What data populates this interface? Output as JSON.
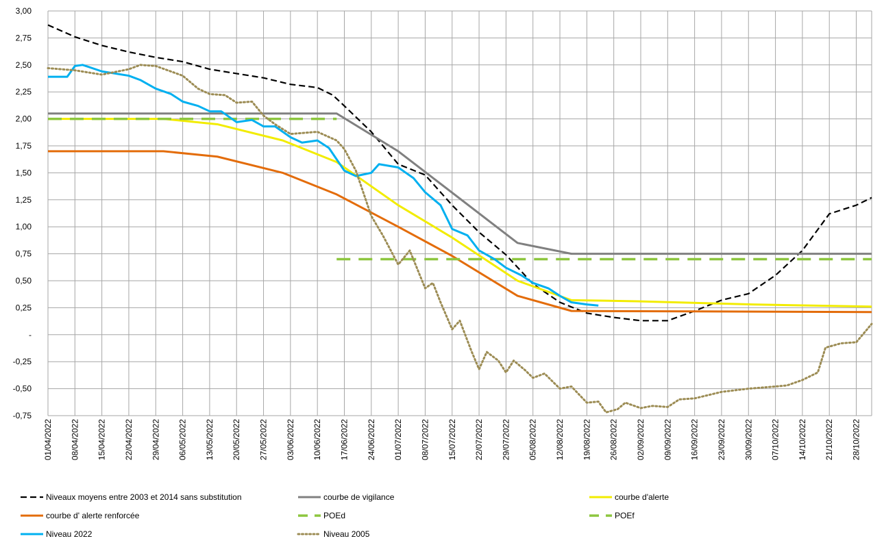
{
  "chart_data": {
    "type": "line",
    "title": "",
    "xlabel": "",
    "ylabel": "",
    "ylim": [
      -0.75,
      3.0
    ],
    "xlim": [
      "01/04/2022",
      "01/11/2022"
    ],
    "grid": true,
    "legend_position": "bottom",
    "y_ticks": [
      {
        "value": 3.0,
        "label": "3,00"
      },
      {
        "value": 2.75,
        "label": "2,75"
      },
      {
        "value": 2.5,
        "label": "2,50"
      },
      {
        "value": 2.25,
        "label": "2,25"
      },
      {
        "value": 2.0,
        "label": "2,00"
      },
      {
        "value": 1.75,
        "label": "1,75"
      },
      {
        "value": 1.5,
        "label": "1,50"
      },
      {
        "value": 1.25,
        "label": "1,25"
      },
      {
        "value": 1.0,
        "label": "1,00"
      },
      {
        "value": 0.75,
        "label": "0,75"
      },
      {
        "value": 0.5,
        "label": "0,50"
      },
      {
        "value": 0.25,
        "label": "0,25"
      },
      {
        "value": 0.0,
        "label": "-"
      },
      {
        "value": -0.25,
        "label": "-0,25"
      },
      {
        "value": -0.5,
        "label": "-0,50"
      },
      {
        "value": -0.75,
        "label": "-0,75"
      }
    ],
    "x_ticks": [
      "01/04/2022",
      "08/04/2022",
      "15/04/2022",
      "22/04/2022",
      "29/04/2022",
      "06/05/2022",
      "13/05/2022",
      "20/05/2022",
      "27/05/2022",
      "03/06/2022",
      "10/06/2022",
      "17/06/2022",
      "24/06/2022",
      "01/07/2022",
      "08/07/2022",
      "15/07/2022",
      "22/07/2022",
      "29/07/2022",
      "05/08/2022",
      "12/08/2022",
      "19/08/2022",
      "26/08/2022",
      "02/09/2022",
      "09/09/2022",
      "16/09/2022",
      "23/09/2022",
      "30/09/2022",
      "07/10/2022",
      "14/10/2022",
      "21/10/2022",
      "28/10/2022"
    ],
    "series": [
      {
        "name": "Niveaux moyens entre 2003 et 2014 sans substitution",
        "color": "#000000",
        "style": "dashed",
        "points": [
          [
            "01/04/2022",
            2.87
          ],
          [
            "08/04/2022",
            2.76
          ],
          [
            "15/04/2022",
            2.68
          ],
          [
            "22/04/2022",
            2.62
          ],
          [
            "29/04/2022",
            2.57
          ],
          [
            "06/05/2022",
            2.53
          ],
          [
            "13/05/2022",
            2.46
          ],
          [
            "20/05/2022",
            2.42
          ],
          [
            "27/05/2022",
            2.38
          ],
          [
            "03/06/2022",
            2.32
          ],
          [
            "10/06/2022",
            2.29
          ],
          [
            "14/06/2022",
            2.22
          ],
          [
            "17/06/2022",
            2.12
          ],
          [
            "24/06/2022",
            1.88
          ],
          [
            "01/07/2022",
            1.58
          ],
          [
            "08/07/2022",
            1.48
          ],
          [
            "15/07/2022",
            1.2
          ],
          [
            "22/07/2022",
            0.95
          ],
          [
            "29/07/2022",
            0.74
          ],
          [
            "05/08/2022",
            0.47
          ],
          [
            "12/08/2022",
            0.3
          ],
          [
            "19/08/2022",
            0.2
          ],
          [
            "26/08/2022",
            0.16
          ],
          [
            "02/09/2022",
            0.13
          ],
          [
            "09/09/2022",
            0.13
          ],
          [
            "16/09/2022",
            0.22
          ],
          [
            "23/09/2022",
            0.32
          ],
          [
            "30/09/2022",
            0.38
          ],
          [
            "07/10/2022",
            0.55
          ],
          [
            "14/10/2022",
            0.78
          ],
          [
            "21/10/2022",
            1.12
          ],
          [
            "28/10/2022",
            1.2
          ],
          [
            "01/11/2022",
            1.27
          ]
        ]
      },
      {
        "name": "courbe de vigilance",
        "color": "#808080",
        "style": "solid",
        "points": [
          [
            "01/04/2022",
            2.05
          ],
          [
            "15/06/2022",
            2.05
          ],
          [
            "01/07/2022",
            1.7
          ],
          [
            "01/08/2022",
            0.85
          ],
          [
            "15/08/2022",
            0.75
          ],
          [
            "01/11/2022",
            0.75
          ]
        ]
      },
      {
        "name": "courbe d'alerte",
        "color": "#f2ec00",
        "style": "solid",
        "points": [
          [
            "01/04/2022",
            2.0
          ],
          [
            "01/05/2022",
            2.0
          ],
          [
            "15/05/2022",
            1.95
          ],
          [
            "01/06/2022",
            1.8
          ],
          [
            "15/06/2022",
            1.6
          ],
          [
            "01/07/2022",
            1.2
          ],
          [
            "15/07/2022",
            0.9
          ],
          [
            "01/08/2022",
            0.5
          ],
          [
            "15/08/2022",
            0.32
          ],
          [
            "01/09/2022",
            0.31
          ],
          [
            "01/10/2022",
            0.28
          ],
          [
            "01/11/2022",
            0.26
          ]
        ]
      },
      {
        "name": "courbe d' alerte renforcée",
        "color": "#e36c0a",
        "style": "solid",
        "points": [
          [
            "01/04/2022",
            1.7
          ],
          [
            "01/05/2022",
            1.7
          ],
          [
            "15/05/2022",
            1.65
          ],
          [
            "01/06/2022",
            1.5
          ],
          [
            "15/06/2022",
            1.3
          ],
          [
            "01/07/2022",
            1.0
          ],
          [
            "15/07/2022",
            0.73
          ],
          [
            "01/08/2022",
            0.36
          ],
          [
            "15/08/2022",
            0.22
          ],
          [
            "01/11/2022",
            0.21
          ]
        ]
      },
      {
        "name": "POEd",
        "color": "#8dc63f",
        "style": "longdash",
        "points": [
          [
            "01/04/2022",
            2.0
          ],
          [
            "15/06/2022",
            2.0
          ]
        ]
      },
      {
        "name": "POEf",
        "color": "#8dc63f",
        "style": "longdash",
        "points": [
          [
            "15/06/2022",
            0.7
          ],
          [
            "01/11/2022",
            0.7
          ]
        ]
      },
      {
        "name": "Niveau 2022",
        "color": "#00b0f0",
        "style": "solid",
        "points": [
          [
            "01/04/2022",
            2.39
          ],
          [
            "06/04/2022",
            2.39
          ],
          [
            "08/04/2022",
            2.49
          ],
          [
            "10/04/2022",
            2.5
          ],
          [
            "15/04/2022",
            2.44
          ],
          [
            "22/04/2022",
            2.4
          ],
          [
            "25/04/2022",
            2.36
          ],
          [
            "29/04/2022",
            2.28
          ],
          [
            "03/05/2022",
            2.23
          ],
          [
            "06/05/2022",
            2.16
          ],
          [
            "10/05/2022",
            2.12
          ],
          [
            "13/05/2022",
            2.07
          ],
          [
            "16/05/2022",
            2.07
          ],
          [
            "20/05/2022",
            1.97
          ],
          [
            "24/05/2022",
            1.99
          ],
          [
            "27/05/2022",
            1.93
          ],
          [
            "30/05/2022",
            1.93
          ],
          [
            "03/06/2022",
            1.83
          ],
          [
            "06/06/2022",
            1.78
          ],
          [
            "10/06/2022",
            1.8
          ],
          [
            "13/06/2022",
            1.73
          ],
          [
            "17/06/2022",
            1.52
          ],
          [
            "20/06/2022",
            1.47
          ],
          [
            "24/06/2022",
            1.5
          ],
          [
            "26/06/2022",
            1.58
          ],
          [
            "01/07/2022",
            1.55
          ],
          [
            "05/07/2022",
            1.45
          ],
          [
            "08/07/2022",
            1.32
          ],
          [
            "12/07/2022",
            1.2
          ],
          [
            "15/07/2022",
            0.98
          ],
          [
            "19/07/2022",
            0.92
          ],
          [
            "22/07/2022",
            0.78
          ],
          [
            "26/07/2022",
            0.7
          ],
          [
            "29/07/2022",
            0.62
          ],
          [
            "02/08/2022",
            0.55
          ],
          [
            "05/08/2022",
            0.48
          ],
          [
            "09/08/2022",
            0.43
          ],
          [
            "12/08/2022",
            0.36
          ],
          [
            "15/08/2022",
            0.3
          ],
          [
            "19/08/2022",
            0.28
          ],
          [
            "22/08/2022",
            0.27
          ]
        ]
      },
      {
        "name": "Niveau 2005",
        "color": "#9c8c54",
        "style": "dotted",
        "points": [
          [
            "01/04/2022",
            2.47
          ],
          [
            "08/04/2022",
            2.45
          ],
          [
            "15/04/2022",
            2.41
          ],
          [
            "22/04/2022",
            2.46
          ],
          [
            "25/04/2022",
            2.5
          ],
          [
            "29/04/2022",
            2.49
          ],
          [
            "06/05/2022",
            2.4
          ],
          [
            "10/05/2022",
            2.28
          ],
          [
            "13/05/2022",
            2.23
          ],
          [
            "17/05/2022",
            2.22
          ],
          [
            "20/05/2022",
            2.15
          ],
          [
            "24/05/2022",
            2.16
          ],
          [
            "27/05/2022",
            2.03
          ],
          [
            "30/05/2022",
            1.95
          ],
          [
            "03/06/2022",
            1.86
          ],
          [
            "10/06/2022",
            1.88
          ],
          [
            "15/06/2022",
            1.8
          ],
          [
            "17/06/2022",
            1.72
          ],
          [
            "20/06/2022",
            1.52
          ],
          [
            "24/06/2022",
            1.1
          ],
          [
            "27/06/2022",
            0.92
          ],
          [
            "01/07/2022",
            0.65
          ],
          [
            "04/07/2022",
            0.78
          ],
          [
            "08/07/2022",
            0.43
          ],
          [
            "10/07/2022",
            0.48
          ],
          [
            "12/07/2022",
            0.3
          ],
          [
            "15/07/2022",
            0.05
          ],
          [
            "17/07/2022",
            0.13
          ],
          [
            "20/07/2022",
            -0.15
          ],
          [
            "22/07/2022",
            -0.32
          ],
          [
            "24/07/2022",
            -0.16
          ],
          [
            "27/07/2022",
            -0.24
          ],
          [
            "29/07/2022",
            -0.35
          ],
          [
            "31/07/2022",
            -0.24
          ],
          [
            "03/08/2022",
            -0.33
          ],
          [
            "05/08/2022",
            -0.4
          ],
          [
            "08/08/2022",
            -0.36
          ],
          [
            "12/08/2022",
            -0.5
          ],
          [
            "15/08/2022",
            -0.48
          ],
          [
            "19/08/2022",
            -0.63
          ],
          [
            "22/08/2022",
            -0.62
          ],
          [
            "24/08/2022",
            -0.72
          ],
          [
            "27/08/2022",
            -0.69
          ],
          [
            "29/08/2022",
            -0.63
          ],
          [
            "02/09/2022",
            -0.68
          ],
          [
            "05/09/2022",
            -0.66
          ],
          [
            "09/09/2022",
            -0.67
          ],
          [
            "12/09/2022",
            -0.6
          ],
          [
            "16/09/2022",
            -0.59
          ],
          [
            "23/09/2022",
            -0.53
          ],
          [
            "30/09/2022",
            -0.5
          ],
          [
            "07/10/2022",
            -0.48
          ],
          [
            "10/10/2022",
            -0.47
          ],
          [
            "14/10/2022",
            -0.42
          ],
          [
            "18/10/2022",
            -0.35
          ],
          [
            "20/10/2022",
            -0.12
          ],
          [
            "24/10/2022",
            -0.08
          ],
          [
            "28/10/2022",
            -0.07
          ],
          [
            "01/11/2022",
            0.1
          ]
        ]
      }
    ]
  }
}
